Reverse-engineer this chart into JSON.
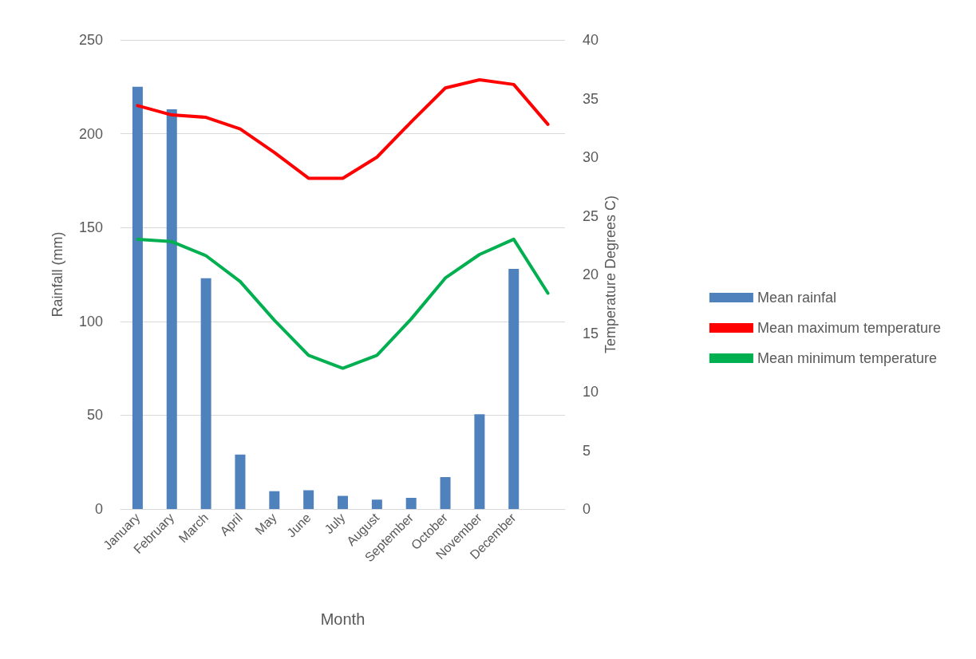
{
  "chart_data": {
    "type": "bar",
    "xlabel": "Month",
    "ylabel": "Rainfall (mm)",
    "y2label": "Temperature Degrees C)",
    "categories": [
      "January",
      "February",
      "March",
      "April",
      "May",
      "June",
      "July",
      "August",
      "September",
      "October",
      "November",
      "December",
      null
    ],
    "series": [
      {
        "name": "Mean rainfal",
        "color": "#4f81bd",
        "values": [
          225,
          213,
          123,
          29,
          9.5,
          10,
          7,
          5,
          6,
          17,
          50.5,
          128,
          null
        ]
      },
      {
        "name": "Mean maximum temperature",
        "type": "line",
        "axis": "y2",
        "color": "#ff0000",
        "values": [
          34.4,
          33.6,
          33.4,
          32.4,
          30.4,
          28.2,
          28.2,
          30,
          33,
          35.9,
          36.6,
          36.2,
          32.8
        ]
      },
      {
        "name": "Mean minimum temperature",
        "type": "line",
        "axis": "y2",
        "color": "#00b050",
        "values": [
          23,
          22.8,
          21.6,
          19.4,
          16.1,
          13.1,
          12,
          13.1,
          16.2,
          19.7,
          21.7,
          23,
          18.4
        ]
      }
    ],
    "ylim": [
      0,
      250
    ],
    "yticks": [
      0,
      50,
      100,
      150,
      200,
      250
    ],
    "y2lim": [
      0,
      40
    ],
    "y2ticks": [
      0,
      5,
      10,
      15,
      20,
      25,
      30,
      35,
      40
    ],
    "grid": "y",
    "legend": "right",
    "marker": "none",
    "line_style": "solid"
  }
}
